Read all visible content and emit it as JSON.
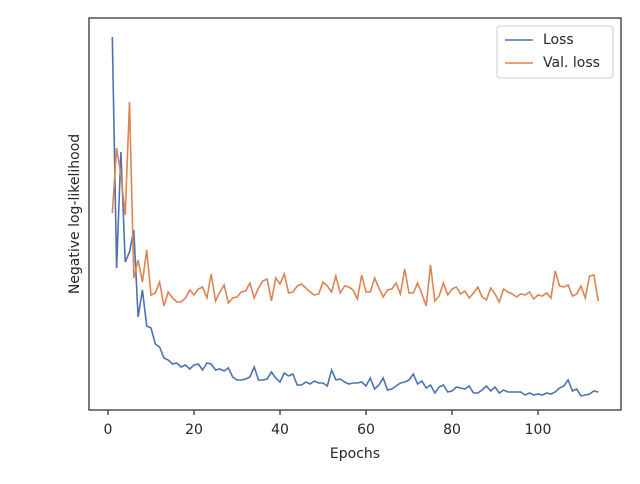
{
  "chart_data": {
    "type": "line",
    "x_label": "Epochs",
    "y_label": "Negative log-likelihood",
    "x": [
      1,
      2,
      3,
      4,
      5,
      6,
      7,
      8,
      9,
      10,
      11,
      12,
      13,
      14,
      15,
      16,
      17,
      18,
      19,
      20,
      21,
      22,
      23,
      24,
      25,
      26,
      27,
      28,
      29,
      30,
      31,
      32,
      33,
      34,
      35,
      36,
      37,
      38,
      39,
      40,
      41,
      42,
      43,
      44,
      45,
      46,
      47,
      48,
      49,
      50,
      51,
      52,
      53,
      54,
      55,
      56,
      57,
      58,
      59,
      60,
      61,
      62,
      63,
      64,
      65,
      66,
      67,
      68,
      69,
      70,
      71,
      72,
      73,
      74,
      75,
      76,
      77,
      78,
      79,
      80,
      81,
      82,
      83,
      84,
      85,
      86,
      87,
      88,
      89,
      90,
      91,
      92,
      93,
      94,
      95,
      96,
      97,
      98,
      99,
      100,
      101,
      102,
      103,
      104,
      105,
      106,
      107,
      108,
      109,
      110,
      111,
      112,
      113,
      114
    ],
    "series": [
      {
        "name": "Loss",
        "color": "#4c72b0",
        "values": [
          373,
          142,
          258,
          148,
          158,
          180,
          93,
          120,
          84,
          82,
          66,
          63,
          52,
          50,
          46,
          47,
          43,
          45,
          41,
          45,
          46,
          40,
          47,
          46,
          40,
          41,
          39,
          42,
          33,
          30,
          30,
          31,
          33,
          43,
          30,
          30,
          31,
          38,
          32,
          28,
          37,
          34,
          36,
          25,
          25,
          28,
          26,
          29,
          27,
          27,
          24,
          40,
          30,
          31,
          28,
          26,
          27,
          27,
          28,
          24,
          32,
          21,
          25,
          32,
          20,
          21,
          24,
          27,
          28,
          30,
          36,
          26,
          29,
          22,
          25,
          17,
          23,
          25,
          18,
          19,
          23,
          22,
          21,
          24,
          17,
          17,
          20,
          24,
          19,
          23,
          17,
          20,
          18,
          18,
          18,
          18,
          15,
          17,
          15,
          16,
          15,
          17,
          16,
          18,
          22,
          24,
          30,
          19,
          21,
          14,
          15,
          16,
          19,
          18
        ]
      },
      {
        "name": "Val. loss",
        "color": "#dd8452",
        "values": [
          197,
          262,
          235,
          195,
          308,
          132,
          150,
          128,
          160,
          115,
          117,
          128,
          104,
          118,
          112,
          108,
          108,
          112,
          120,
          115,
          121,
          123,
          112,
          136,
          109,
          118,
          125,
          107,
          112,
          113,
          118,
          119,
          127,
          112,
          122,
          129,
          131,
          109,
          132,
          126,
          136,
          117,
          118,
          124,
          126,
          122,
          118,
          115,
          116,
          128,
          124,
          118,
          134,
          117,
          124,
          123,
          120,
          111,
          135,
          118,
          118,
          132,
          122,
          113,
          120,
          121,
          127,
          116,
          141,
          117,
          117,
          127,
          116,
          104,
          145,
          109,
          114,
          127,
          115,
          121,
          123,
          116,
          119,
          112,
          117,
          123,
          113,
          110,
          122,
          116,
          108,
          121,
          118,
          116,
          113,
          116,
          115,
          118,
          111,
          115,
          114,
          117,
          112,
          139,
          124,
          123,
          125,
          114,
          116,
          124,
          112,
          134,
          135,
          109
        ]
      }
    ],
    "xlim": [
      -4.42,
      119.3
    ],
    "ylim": [
      0,
      392
    ],
    "xticks": [
      0,
      20,
      40,
      60,
      80,
      100
    ],
    "legend": "upper right"
  }
}
